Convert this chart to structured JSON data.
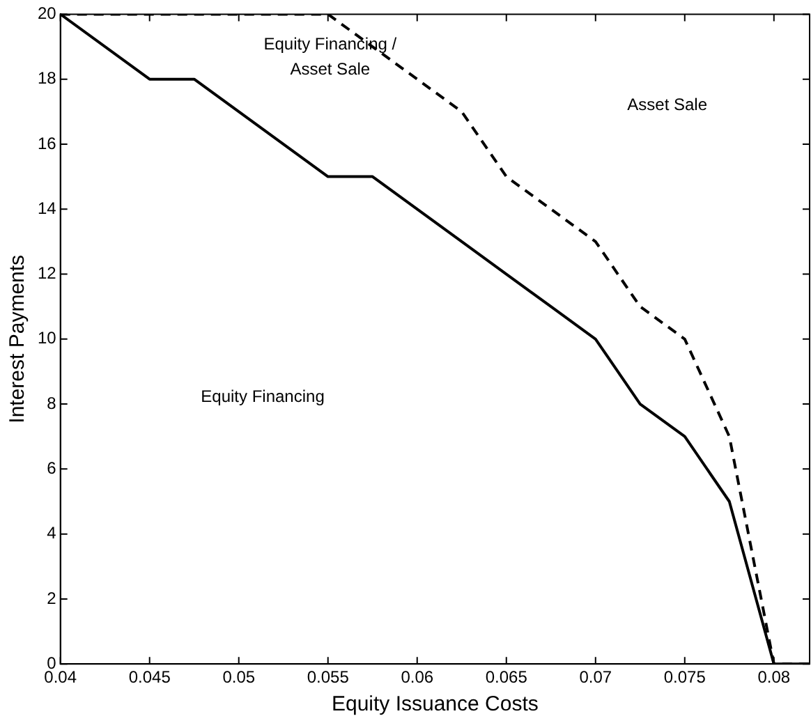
{
  "chart_data": {
    "type": "line",
    "xlabel": "Equity Issuance Costs",
    "ylabel": "Interest Payments",
    "xlim": [
      0.04,
      0.082
    ],
    "xticks": [
      0.04,
      0.045,
      0.05,
      0.055,
      0.06,
      0.065,
      0.07,
      0.075,
      0.08
    ],
    "ylim": [
      0,
      20
    ],
    "yticks": [
      0,
      2,
      4,
      6,
      8,
      10,
      12,
      14,
      16,
      18,
      20
    ],
    "grid": false,
    "legend": false,
    "marker": "none",
    "series": [
      {
        "color": "#000000",
        "line_style": "solid",
        "x": [
          0.04,
          0.045,
          0.0475,
          0.055,
          0.0575,
          0.0625,
          0.065,
          0.0675,
          0.07,
          0.0725,
          0.075,
          0.0775,
          0.08,
          0.082
        ],
        "values": [
          20,
          18,
          18,
          15,
          15,
          13,
          12,
          11,
          10,
          8,
          7,
          5,
          0,
          0
        ]
      },
      {
        "color": "#000000",
        "line_style": "dashed",
        "x": [
          0.04,
          0.055,
          0.0625,
          0.065,
          0.0675,
          0.07,
          0.0725,
          0.075,
          0.0775,
          0.08,
          0.082
        ],
        "values": [
          20,
          20,
          17,
          15,
          14,
          13,
          11,
          10,
          7,
          0,
          0
        ]
      }
    ],
    "annotations": [
      "Equity Financing",
      "Equity Financing /\nAsset Sale",
      "Asset Sale"
    ]
  }
}
